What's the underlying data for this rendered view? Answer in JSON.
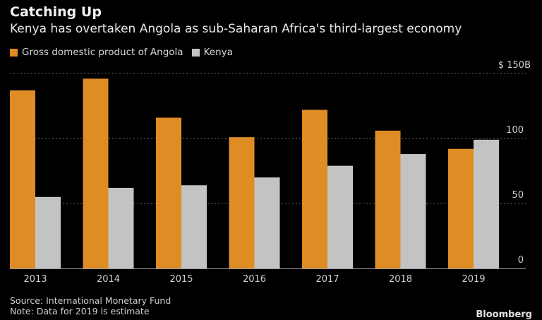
{
  "chart_data": {
    "type": "bar",
    "title": "Catching Up",
    "subtitle": "Kenya has overtaken Angola as sub-Saharan Africa's third-largest economy",
    "categories": [
      "2013",
      "2014",
      "2015",
      "2016",
      "2017",
      "2018",
      "2019"
    ],
    "series": [
      {
        "name": "Gross domestic product of Angola",
        "color": "#e08c24",
        "values": [
          137,
          146,
          116,
          101,
          122,
          106,
          92
        ]
      },
      {
        "name": "Kenya",
        "color": "#c3c3c3",
        "values": [
          55,
          62,
          64,
          70,
          79,
          88,
          99
        ]
      }
    ],
    "xlabel": "",
    "ylabel": "",
    "ylim": [
      0,
      150
    ],
    "yticks": [
      0,
      50,
      100,
      150
    ],
    "ytick_labels": [
      "0",
      "50",
      "100",
      "$ 150B"
    ],
    "y_axis_side": "right",
    "grid": true,
    "legend_position": "top-left"
  },
  "footer": {
    "source": "Source: International Monetary Fund",
    "note": "Note: Data for 2019 is estimate",
    "brand": "Bloomberg"
  }
}
